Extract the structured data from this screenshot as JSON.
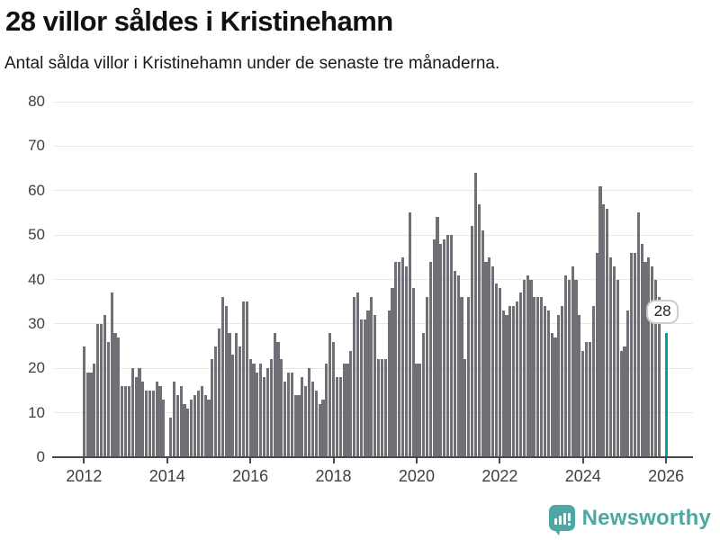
{
  "header": {
    "title": "28 villor såldes i Kristinehamn",
    "subtitle": "Antal sålda villor i Kristinehamn under de senaste tre månaderna."
  },
  "chart_data": {
    "type": "bar",
    "title": "28 villor såldes i Kristinehamn",
    "subtitle": "Antal sålda villor i Kristinehamn under de senaste tre månaderna.",
    "x_start_month": "2012-01",
    "x_end_month": "2026-01",
    "x_tick_years": [
      "2012",
      "2014",
      "2016",
      "2018",
      "2020",
      "2022",
      "2024",
      "2026"
    ],
    "y_ticks": [
      0,
      10,
      20,
      30,
      40,
      50,
      60,
      70,
      80
    ],
    "ylim": [
      0,
      80
    ],
    "grid": true,
    "values": [
      25,
      19,
      19,
      21,
      30,
      30,
      32,
      26,
      37,
      28,
      27,
      16,
      16,
      16,
      20,
      18,
      20,
      17,
      15,
      15,
      15,
      17,
      16,
      13,
      null,
      9,
      17,
      14,
      16,
      12,
      11,
      13,
      14,
      15,
      16,
      14,
      13,
      22,
      25,
      29,
      36,
      34,
      28,
      23,
      28,
      25,
      35,
      35,
      22,
      21,
      19,
      21,
      18,
      20,
      22,
      28,
      26,
      22,
      17,
      19,
      19,
      14,
      14,
      18,
      16,
      20,
      17,
      15,
      12,
      13,
      21,
      28,
      26,
      18,
      18,
      21,
      21,
      24,
      36,
      37,
      31,
      31,
      33,
      36,
      32,
      22,
      22,
      22,
      33,
      38,
      44,
      44,
      45,
      43,
      55,
      38,
      21,
      21,
      28,
      36,
      44,
      49,
      54,
      48,
      49,
      50,
      50,
      42,
      41,
      36,
      22,
      36,
      52,
      64,
      57,
      51,
      44,
      45,
      43,
      39,
      38,
      33,
      32,
      34,
      34,
      35,
      37,
      40,
      41,
      40,
      36,
      36,
      36,
      34,
      33,
      28,
      27,
      32,
      34,
      41,
      40,
      43,
      40,
      32,
      24,
      26,
      26,
      34,
      46,
      61,
      57,
      56,
      45,
      43,
      40,
      24,
      25,
      33,
      46,
      46,
      55,
      48,
      44,
      45,
      43,
      40,
      36,
      null,
      28
    ],
    "highlight": {
      "index": 168,
      "value": 28,
      "label": "28"
    },
    "colors": {
      "bar": "#716e75",
      "highlight": "#00a29e"
    }
  },
  "annotation": {
    "label": "28"
  },
  "footer": {
    "brand": "Newsworthy",
    "logo_color": "#4da7a2",
    "logo_icon": "bar-chart-speech-bubble-icon"
  }
}
